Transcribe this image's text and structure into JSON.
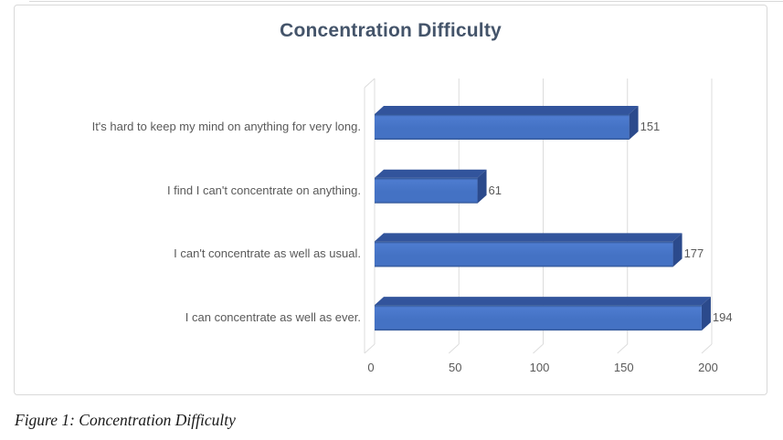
{
  "caption": {
    "text": "Figure 1: Concentration Difficulty"
  },
  "chart_data": {
    "type": "bar",
    "orientation": "horizontal",
    "style": "3d",
    "title": "Concentration Difficulty",
    "categories": [
      "It's hard to keep my mind on anything for very long.",
      "I find I can't concentrate on anything.",
      "I can't concentrate as well as usual.",
      "I can concentrate as well as ever."
    ],
    "values": [
      151,
      61,
      177,
      194
    ],
    "data_labels": [
      "151",
      "61",
      "177",
      "194"
    ],
    "x_ticks": [
      0,
      50,
      100,
      150,
      200
    ],
    "xlim": [
      0,
      200
    ],
    "grid": true,
    "legend": "none",
    "colors": {
      "bar_front": "#4472C4",
      "bar_front_light": "#4E7CD0",
      "bar_front_dark": "#30528F",
      "bar_top": "#32549C",
      "bar_side": "#2B4A8C",
      "title_text": "#44546A",
      "axis_text": "#595959",
      "gridline": "#DCDCDC",
      "chart_border": "#D9D9D9",
      "caption_text": "#1A1A1A"
    }
  }
}
